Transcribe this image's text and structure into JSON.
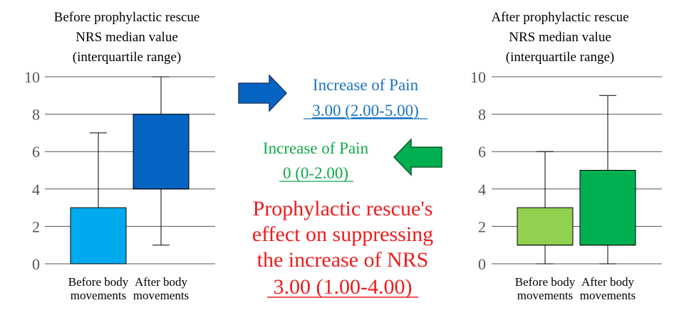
{
  "colors": {
    "left_before": "#00aaee",
    "left_after": "#0563c1",
    "right_before": "#92d050",
    "right_after": "#00b050",
    "blue_text": "#1a73c2",
    "green_text": "#11a84a",
    "red_text": "#ee1c1c",
    "gridline": "#555555"
  },
  "center": {
    "blue_label": "Increase of Pain",
    "blue_value": "3.00 (2.00-5.00)",
    "green_label": "Increase of Pain",
    "green_value": "0 (0-2.00)",
    "red_line1": "Prophylactic rescue's",
    "red_line2": "effect on suppressing",
    "red_line3": "the increase of NRS",
    "red_value": "3.00 (1.00-4.00)"
  },
  "chart_data": [
    {
      "type": "box",
      "title_lines": [
        "Before prophylactic rescue",
        "NRS median value",
        "(interquartile range)"
      ],
      "ylim": [
        0,
        10
      ],
      "yticks": [
        "0",
        "2",
        "4",
        "6",
        "8",
        "10"
      ],
      "grid": true,
      "categories": [
        {
          "label_lines": [
            "Before body",
            "movements"
          ],
          "min": 0,
          "q1": 0,
          "median": 0,
          "q3": 3,
          "max": 7
        },
        {
          "label_lines": [
            "After body",
            "movements"
          ],
          "min": 1,
          "q1": 4,
          "median": 4,
          "q3": 8,
          "max": 10
        }
      ]
    },
    {
      "type": "box",
      "title_lines": [
        "After prophylactic rescue",
        "NRS median value",
        "(interquartile range)"
      ],
      "ylim": [
        0,
        10
      ],
      "yticks": [
        "0",
        "2",
        "4",
        "6",
        "8",
        "10"
      ],
      "grid": true,
      "categories": [
        {
          "label_lines": [
            "Before body",
            "movements"
          ],
          "min": 0,
          "q1": 1,
          "median": 1,
          "q3": 3,
          "max": 6
        },
        {
          "label_lines": [
            "After body",
            "movements"
          ],
          "min": 0,
          "q1": 1,
          "median": 1,
          "q3": 5,
          "max": 9
        }
      ]
    }
  ]
}
